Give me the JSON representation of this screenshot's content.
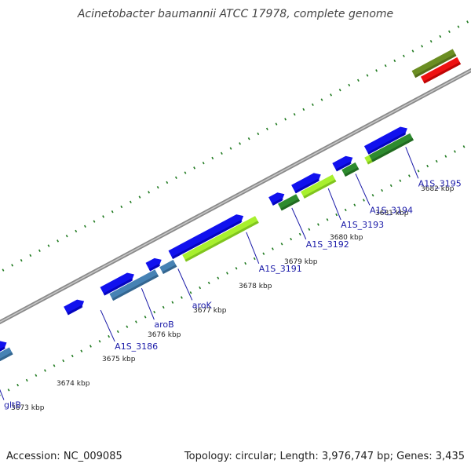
{
  "title": "Acinetobacter baumannii ATCC 17978, complete genome",
  "footer": {
    "accession": "Accession: NC_009085",
    "summary": "Topology: circular; Length: 3,976,747 bp; Genes: 3,435"
  },
  "colors": {
    "backbone": "#8a8a8a",
    "tick_dot": "#1f7a1f",
    "cds_forward": "#1111ee",
    "cds_reverse_steel": "#4682b4",
    "cds_reverse_lime": "#a8f02e",
    "cds_reverse_green": "#2e8b2e",
    "olive": "#6b8e23",
    "red": "#ee1111",
    "label": "#1a1aa8"
  },
  "chart_data": {
    "type": "linear-genome-map",
    "units": "kbp",
    "ticks": [
      {
        "kbp": 3673,
        "label": "3673 kbp"
      },
      {
        "kbp": 3674,
        "label": "3674 kbp"
      },
      {
        "kbp": 3675,
        "label": "3675 kbp"
      },
      {
        "kbp": 3676,
        "label": "3676 kbp"
      },
      {
        "kbp": 3677,
        "label": "3677 kbp"
      },
      {
        "kbp": 3678,
        "label": "3678 kbp"
      },
      {
        "kbp": 3679,
        "label": "3679 kbp"
      },
      {
        "kbp": 3680,
        "label": "3680 kbp"
      },
      {
        "kbp": 3681,
        "label": "3681 kbp"
      },
      {
        "kbp": 3682,
        "label": "3682 kbp"
      }
    ],
    "features": [
      {
        "track": "forward",
        "start": 3671.8,
        "end": 3673.7,
        "color": "cds_forward"
      },
      {
        "track": "forward",
        "start": 3675.0,
        "end": 3675.4,
        "color": "cds_forward"
      },
      {
        "track": "forward",
        "start": 3675.8,
        "end": 3676.5,
        "color": "cds_forward"
      },
      {
        "track": "forward",
        "start": 3676.8,
        "end": 3677.1,
        "color": "cds_forward"
      },
      {
        "track": "forward",
        "start": 3677.3,
        "end": 3678.9,
        "color": "cds_forward"
      },
      {
        "track": "forward",
        "start": 3679.5,
        "end": 3679.8,
        "color": "cds_forward"
      },
      {
        "track": "forward",
        "start": 3680.0,
        "end": 3680.6,
        "color": "cds_forward"
      },
      {
        "track": "forward",
        "start": 3680.9,
        "end": 3681.3,
        "color": "cds_forward"
      },
      {
        "track": "forward",
        "start": 3681.6,
        "end": 3682.5,
        "color": "cds_forward"
      },
      {
        "track": "reverse",
        "start": 3671.8,
        "end": 3673.7,
        "color": "cds_reverse_steel"
      },
      {
        "track": "reverse",
        "start": 3675.9,
        "end": 3676.9,
        "color": "cds_reverse_steel"
      },
      {
        "track": "reverse",
        "start": 3677.0,
        "end": 3677.3,
        "color": "cds_reverse_steel"
      },
      {
        "track": "reverse",
        "start": 3677.5,
        "end": 3679.1,
        "color": "cds_reverse_lime"
      },
      {
        "track": "reverse",
        "start": 3679.6,
        "end": 3680.0,
        "color": "cds_reverse_green"
      },
      {
        "track": "reverse",
        "start": 3680.1,
        "end": 3680.8,
        "color": "cds_reverse_lime"
      },
      {
        "track": "reverse",
        "start": 3681.0,
        "end": 3681.3,
        "color": "cds_reverse_green"
      },
      {
        "track": "reverse",
        "start": 3681.5,
        "end": 3682.4,
        "color": "cds_reverse_lime"
      },
      {
        "track": "reverse",
        "start": 3681.6,
        "end": 3682.5,
        "color": "cds_reverse_green"
      },
      {
        "track": "outer",
        "start": 3683.1,
        "end": 3684.0,
        "color": "olive"
      },
      {
        "track": "outer2",
        "start": 3683.2,
        "end": 3684.0,
        "color": "red"
      }
    ],
    "gene_labels": [
      {
        "name": "gltB",
        "kbp": 3673.2
      },
      {
        "name": "A1S_3186",
        "kbp": 3675.6
      },
      {
        "name": "aroB",
        "kbp": 3676.5
      },
      {
        "name": "aroK",
        "kbp": 3677.3
      },
      {
        "name": "A1S_3191",
        "kbp": 3678.8
      },
      {
        "name": "A1S_3192",
        "kbp": 3679.8
      },
      {
        "name": "A1S_3193",
        "kbp": 3680.6
      },
      {
        "name": "A1S_3194",
        "kbp": 3681.2
      },
      {
        "name": "A1S_3195",
        "kbp": 3682.3
      }
    ]
  }
}
